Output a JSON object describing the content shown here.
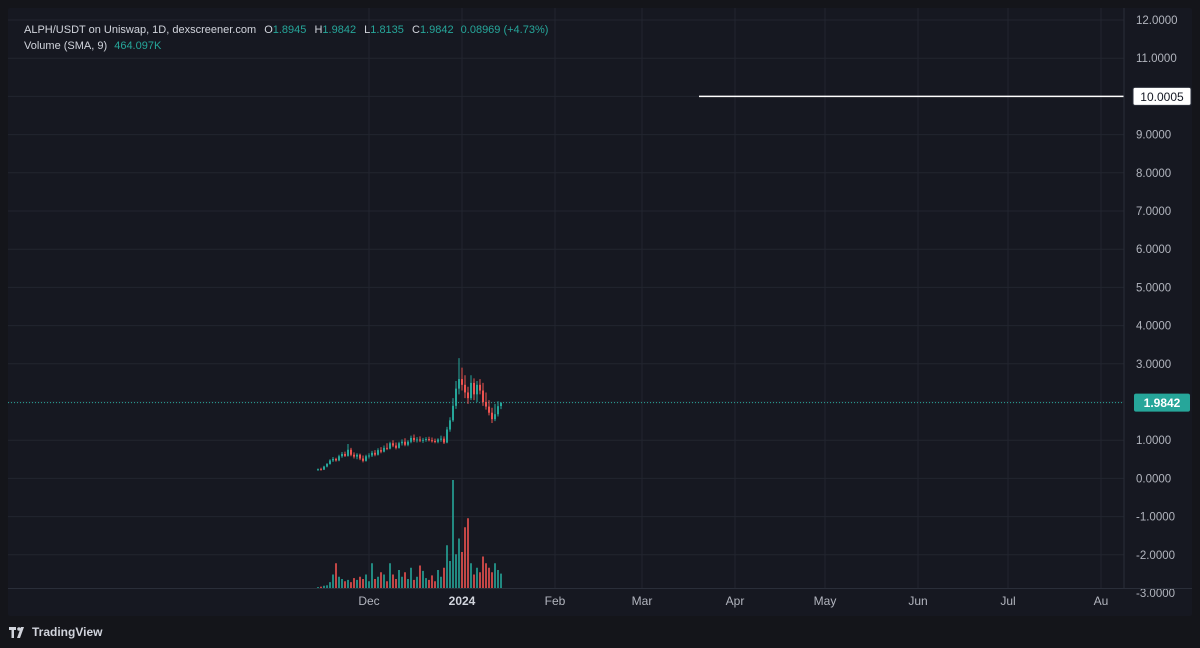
{
  "legend": {
    "symbol": "ALPH/USDT on Uniswap, 1D, dexscreener.com",
    "open_key": "O",
    "open": "1.8945",
    "high_key": "H",
    "high": "1.9842",
    "low_key": "L",
    "low": "1.8135",
    "close_key": "C",
    "close": "1.9842",
    "change": "0.08969 (+4.73%)",
    "volume_label": "Volume (SMA, 9)",
    "volume_value": "464.097K"
  },
  "branding": {
    "name": "TradingView"
  },
  "colors": {
    "background": "#161821",
    "grid": "#22252f",
    "up": "#26a69a",
    "down": "#ef5350",
    "text": "#b2b5be",
    "price_line": "#26a69a"
  },
  "chart_data": {
    "type": "candlestick",
    "interval": "1D",
    "y_axis": {
      "range": [
        -3,
        12.3
      ],
      "tick_values": [
        12,
        11,
        10,
        9,
        8,
        7,
        6,
        5,
        4,
        3,
        2,
        1,
        0,
        -1,
        -2,
        -3
      ],
      "tick_labels": [
        "12.0000",
        "11.0000",
        "10.0000",
        "9.0000",
        "8.0000",
        "7.0000",
        "6.0000",
        "5.0000",
        "4.0000",
        "3.0000",
        "2.0000",
        "1.0000",
        "0.0000",
        "-1.0000",
        "-2.0000",
        "-3.0000"
      ]
    },
    "x_axis": {
      "labels": [
        {
          "date": "2023-12-01",
          "text": "Dec",
          "bold": false
        },
        {
          "date": "2024-01-01",
          "text": "2024",
          "bold": true
        },
        {
          "date": "2024-02-01",
          "text": "Feb",
          "bold": false
        },
        {
          "date": "2024-03-01",
          "text": "Mar",
          "bold": false
        },
        {
          "date": "2024-04-01",
          "text": "Apr",
          "bold": false
        },
        {
          "date": "2024-05-01",
          "text": "May",
          "bold": false
        },
        {
          "date": "2024-06-01",
          "text": "Jun",
          "bold": false
        },
        {
          "date": "2024-07-01",
          "text": "Jul",
          "bold": false
        },
        {
          "date": "2024-08-01",
          "text": "Au",
          "bold": false
        }
      ]
    },
    "grid": true,
    "last_price": {
      "value": 1.9842,
      "label": "1.9842"
    },
    "horizontal_line": {
      "value": 10.0005,
      "label": "10.0005",
      "start_date": "2024-03-20"
    },
    "candles_start_date": "2023-11-14",
    "candles": [
      [
        0.22,
        0.26,
        0.2,
        0.24
      ],
      [
        0.24,
        0.28,
        0.21,
        0.23
      ],
      [
        0.23,
        0.33,
        0.22,
        0.31
      ],
      [
        0.31,
        0.4,
        0.29,
        0.38
      ],
      [
        0.38,
        0.5,
        0.36,
        0.47
      ],
      [
        0.47,
        0.56,
        0.43,
        0.51
      ],
      [
        0.51,
        0.54,
        0.44,
        0.47
      ],
      [
        0.47,
        0.62,
        0.45,
        0.58
      ],
      [
        0.58,
        0.69,
        0.54,
        0.64
      ],
      [
        0.64,
        0.7,
        0.56,
        0.59
      ],
      [
        0.59,
        0.9,
        0.57,
        0.75
      ],
      [
        0.75,
        0.8,
        0.58,
        0.62
      ],
      [
        0.62,
        0.68,
        0.52,
        0.57
      ],
      [
        0.57,
        0.66,
        0.5,
        0.62
      ],
      [
        0.62,
        0.65,
        0.48,
        0.52
      ],
      [
        0.52,
        0.6,
        0.42,
        0.46
      ],
      [
        0.46,
        0.62,
        0.44,
        0.58
      ],
      [
        0.58,
        0.66,
        0.52,
        0.6
      ],
      [
        0.6,
        0.72,
        0.56,
        0.67
      ],
      [
        0.67,
        0.74,
        0.58,
        0.62
      ],
      [
        0.62,
        0.79,
        0.6,
        0.74
      ],
      [
        0.74,
        0.82,
        0.66,
        0.7
      ],
      [
        0.7,
        0.86,
        0.68,
        0.8
      ],
      [
        0.8,
        0.92,
        0.74,
        0.78
      ],
      [
        0.78,
        0.96,
        0.76,
        0.92
      ],
      [
        0.92,
        1.0,
        0.82,
        0.86
      ],
      [
        0.86,
        0.94,
        0.76,
        0.8
      ],
      [
        0.8,
        0.96,
        0.78,
        0.92
      ],
      [
        0.92,
        1.02,
        0.86,
        0.96
      ],
      [
        0.96,
        1.05,
        0.84,
        0.88
      ],
      [
        0.88,
        1.0,
        0.84,
        0.96
      ],
      [
        0.96,
        1.12,
        0.92,
        1.06
      ],
      [
        1.06,
        1.15,
        0.95,
        1.0
      ],
      [
        1.0,
        1.08,
        0.94,
        1.02
      ],
      [
        1.02,
        1.1,
        0.95,
        0.99
      ],
      [
        0.99,
        1.06,
        0.93,
        1.01
      ],
      [
        1.01,
        1.08,
        0.96,
        1.03
      ],
      [
        1.03,
        1.09,
        0.97,
        1.0
      ],
      [
        1.0,
        1.07,
        0.94,
        0.98
      ],
      [
        0.98,
        1.04,
        0.92,
        0.96
      ],
      [
        0.96,
        1.05,
        0.92,
        1.02
      ],
      [
        1.02,
        1.12,
        0.96,
        1.04
      ],
      [
        1.04,
        1.1,
        0.9,
        0.94
      ],
      [
        0.94,
        1.35,
        0.92,
        1.28
      ],
      [
        1.28,
        1.6,
        1.22,
        1.52
      ],
      [
        1.52,
        2.1,
        1.48,
        1.9
      ],
      [
        1.9,
        2.55,
        1.82,
        2.35
      ],
      [
        2.35,
        3.15,
        2.2,
        2.6
      ],
      [
        2.6,
        2.9,
        2.3,
        2.45
      ],
      [
        2.45,
        2.7,
        2.1,
        2.25
      ],
      [
        2.25,
        2.4,
        1.95,
        2.1
      ],
      [
        2.1,
        2.7,
        2.05,
        2.5
      ],
      [
        2.5,
        2.62,
        2.05,
        2.2
      ],
      [
        2.2,
        2.55,
        2.0,
        2.45
      ],
      [
        2.45,
        2.6,
        2.2,
        2.3
      ],
      [
        2.3,
        2.5,
        1.9,
        2.0
      ],
      [
        2.0,
        2.25,
        1.8,
        1.88
      ],
      [
        1.88,
        2.05,
        1.65,
        1.72
      ],
      [
        1.72,
        1.85,
        1.45,
        1.55
      ],
      [
        1.55,
        1.95,
        1.5,
        1.68
      ],
      [
        1.68,
        2.02,
        1.62,
        1.89
      ],
      [
        1.8945,
        1.9842,
        1.8135,
        1.9842
      ]
    ],
    "volume": [
      0.02,
      0.03,
      0.05,
      0.06,
      0.13,
      0.3,
      0.55,
      0.25,
      0.2,
      0.15,
      0.18,
      0.13,
      0.22,
      0.18,
      0.25,
      0.2,
      0.3,
      0.15,
      0.55,
      0.2,
      0.25,
      0.35,
      0.3,
      0.15,
      0.55,
      0.3,
      0.2,
      0.4,
      0.25,
      0.35,
      0.2,
      0.45,
      0.18,
      0.25,
      0.5,
      0.38,
      0.22,
      0.18,
      0.28,
      0.15,
      0.4,
      0.25,
      0.45,
      0.95,
      0.6,
      2.4,
      0.75,
      1.1,
      0.8,
      1.35,
      1.55,
      0.55,
      0.3,
      0.45,
      0.35,
      0.7,
      0.55,
      0.45,
      0.35,
      0.55,
      0.4,
      0.32
    ]
  }
}
